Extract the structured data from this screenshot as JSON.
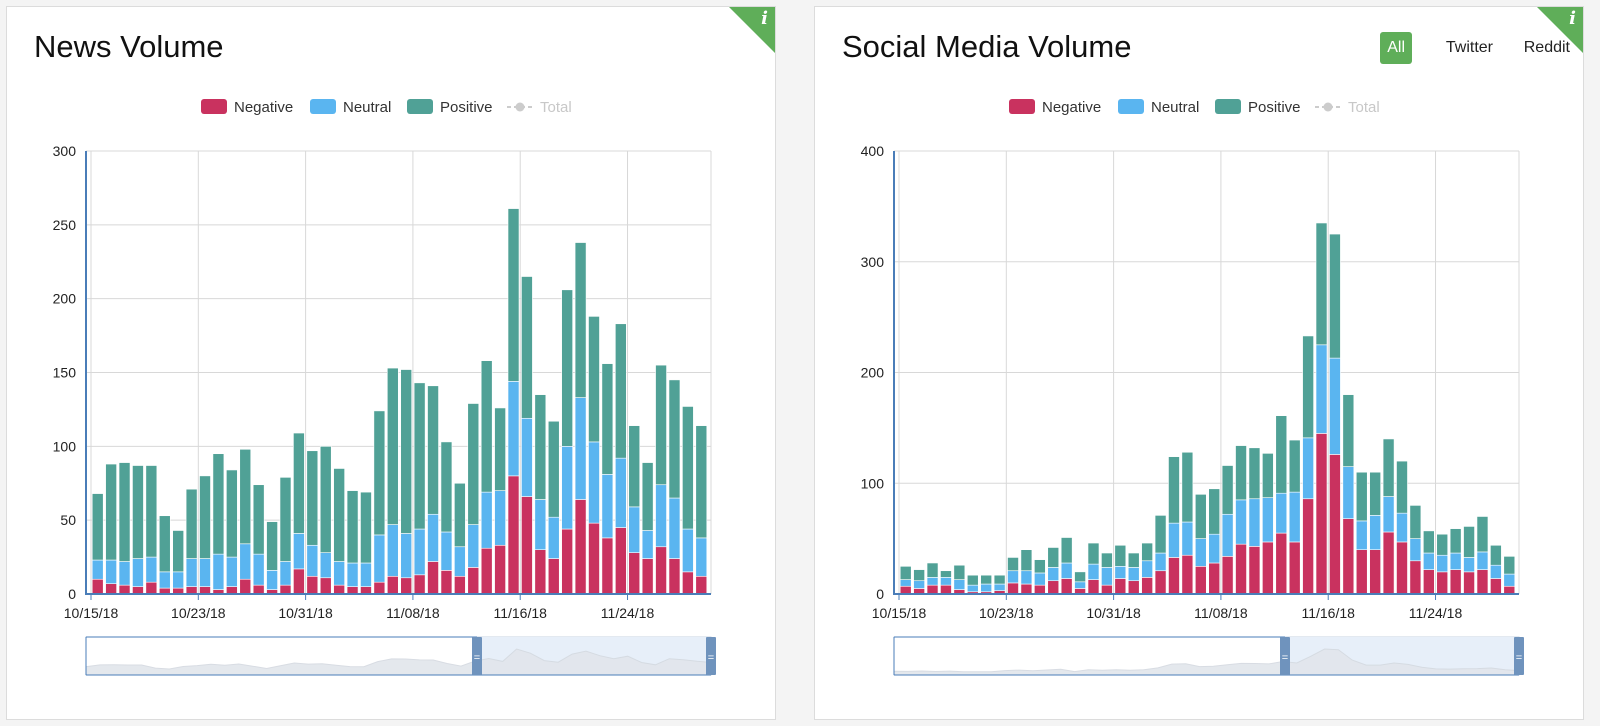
{
  "legend": [
    {
      "name": "Negative",
      "color": "#c9325f",
      "kind": "bar",
      "enabled": true
    },
    {
      "name": "Neutral",
      "color": "#5ab5f0",
      "kind": "bar",
      "enabled": true
    },
    {
      "name": "Positive",
      "color": "#50a196",
      "kind": "bar",
      "enabled": true
    },
    {
      "name": "Total",
      "color": "#cccccc",
      "kind": "line",
      "enabled": false
    }
  ],
  "info_icon": {
    "glyph": "i",
    "icon": "info-icon",
    "color": "#5fae59"
  },
  "navigator": {
    "handle_glyph": "="
  },
  "panels": {
    "news": {
      "title": "News Volume"
    },
    "social": {
      "title": "Social Media Volume",
      "source_tabs": [
        {
          "label": "All",
          "active": true
        },
        {
          "label": "Twitter",
          "active": false
        },
        {
          "label": "Reddit",
          "active": false
        }
      ]
    }
  },
  "chart_data": [
    {
      "id": "news",
      "type": "bar",
      "stacked": true,
      "title": "News Volume",
      "xlabel": "",
      "ylabel": "",
      "ylim": [
        0,
        300
      ],
      "yticks": [
        0,
        50,
        100,
        150,
        200,
        250,
        300
      ],
      "grid": true,
      "legend_position": "top-center",
      "xtick_labels": [
        "10/15/18",
        "10/23/18",
        "10/31/18",
        "11/08/18",
        "11/16/18",
        "11/24/18"
      ],
      "xtick_indices": [
        0,
        8,
        16,
        24,
        32,
        40
      ],
      "series": [
        {
          "name": "Negative",
          "values": [
            10,
            7,
            6,
            5,
            8,
            4,
            4,
            5,
            5,
            3,
            5,
            10,
            6,
            3,
            6,
            17,
            12,
            11,
            6,
            5,
            5,
            8,
            12,
            11,
            13,
            22,
            16,
            12,
            18,
            31,
            33,
            80,
            66,
            30,
            24,
            44,
            64,
            48,
            38,
            45,
            28,
            24,
            32,
            24,
            15,
            12
          ]
        },
        {
          "name": "Neutral",
          "values": [
            13,
            16,
            16,
            19,
            17,
            11,
            11,
            19,
            19,
            24,
            20,
            24,
            21,
            13,
            16,
            24,
            21,
            17,
            16,
            16,
            16,
            32,
            35,
            30,
            31,
            32,
            26,
            20,
            29,
            38,
            37,
            64,
            53,
            34,
            28,
            56,
            69,
            55,
            43,
            47,
            31,
            19,
            42,
            41,
            29,
            26
          ]
        },
        {
          "name": "Positive",
          "values": [
            45,
            65,
            67,
            63,
            62,
            38,
            28,
            47,
            56,
            68,
            59,
            64,
            47,
            33,
            57,
            68,
            64,
            72,
            63,
            49,
            48,
            84,
            106,
            111,
            99,
            87,
            61,
            43,
            82,
            89,
            56,
            117,
            96,
            71,
            65,
            106,
            105,
            85,
            75,
            91,
            55,
            46,
            81,
            80,
            83,
            76
          ]
        }
      ]
    },
    {
      "id": "social",
      "type": "bar",
      "stacked": true,
      "title": "Social Media Volume",
      "xlabel": "",
      "ylabel": "",
      "ylim": [
        0,
        400
      ],
      "yticks": [
        0,
        100,
        200,
        300,
        400
      ],
      "grid": true,
      "legend_position": "top-center",
      "xtick_labels": [
        "10/15/18",
        "10/23/18",
        "10/31/18",
        "11/08/18",
        "11/16/18",
        "11/24/18"
      ],
      "xtick_indices": [
        0,
        8,
        16,
        24,
        32,
        40
      ],
      "series": [
        {
          "name": "Negative",
          "values": [
            7,
            5,
            8,
            8,
            4,
            2,
            2,
            3,
            10,
            9,
            8,
            12,
            14,
            5,
            13,
            8,
            14,
            12,
            15,
            21,
            33,
            35,
            25,
            28,
            34,
            45,
            43,
            47,
            55,
            47,
            86,
            145,
            126,
            68,
            40,
            40,
            56,
            47,
            30,
            22,
            20,
            22,
            20,
            22,
            14,
            7
          ]
        },
        {
          "name": "Neutral",
          "values": [
            6,
            7,
            7,
            7,
            9,
            6,
            7,
            6,
            11,
            12,
            11,
            12,
            14,
            6,
            14,
            16,
            11,
            12,
            15,
            16,
            31,
            30,
            25,
            26,
            38,
            40,
            43,
            40,
            36,
            45,
            55,
            80,
            87,
            47,
            26,
            31,
            32,
            26,
            20,
            15,
            15,
            15,
            13,
            16,
            12,
            11
          ]
        },
        {
          "name": "Positive",
          "values": [
            12,
            10,
            13,
            6,
            13,
            9,
            8,
            8,
            12,
            19,
            12,
            18,
            23,
            9,
            19,
            13,
            19,
            13,
            16,
            34,
            60,
            63,
            40,
            41,
            44,
            49,
            46,
            40,
            70,
            47,
            92,
            110,
            112,
            65,
            44,
            39,
            52,
            47,
            30,
            20,
            19,
            22,
            28,
            32,
            18,
            16
          ]
        }
      ]
    }
  ]
}
